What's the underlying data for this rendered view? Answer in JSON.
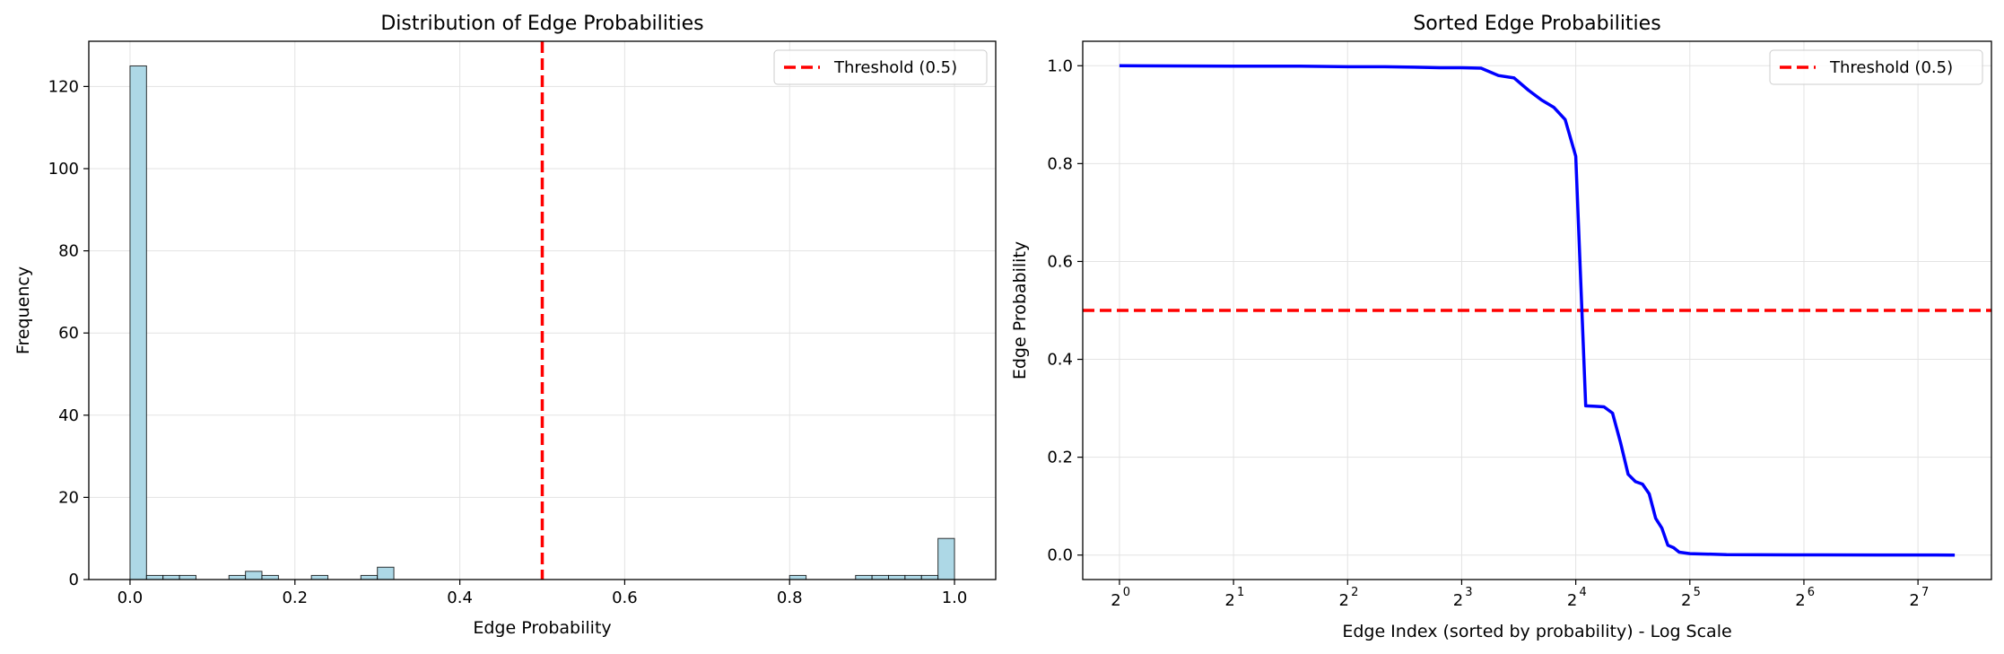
{
  "chart_data": [
    {
      "type": "bar",
      "title": "Distribution of Edge Probabilities",
      "xlabel": "Edge Probability",
      "ylabel": "Frequency",
      "xlim": [
        -0.05,
        1.05
      ],
      "ylim": [
        0,
        131
      ],
      "xticks": [
        0.0,
        0.2,
        0.4,
        0.6,
        0.8,
        1.0
      ],
      "xtick_labels": [
        "0.0",
        "0.2",
        "0.4",
        "0.6",
        "0.8",
        "1.0"
      ],
      "yticks": [
        0,
        20,
        40,
        60,
        80,
        100,
        120
      ],
      "ytick_labels": [
        "0",
        "20",
        "40",
        "60",
        "80",
        "100",
        "120"
      ],
      "bin_width": 0.02,
      "bin_starts": [
        0.0,
        0.02,
        0.04,
        0.06,
        0.12,
        0.14,
        0.16,
        0.22,
        0.28,
        0.3,
        0.8,
        0.88,
        0.9,
        0.92,
        0.94,
        0.96,
        0.98
      ],
      "values": [
        125,
        1,
        1,
        1,
        1,
        2,
        1,
        1,
        1,
        3,
        1,
        1,
        1,
        1,
        1,
        1,
        10
      ],
      "bar_color": "#add8e6",
      "bar_edge_color": "#000000",
      "grid": true,
      "threshold": {
        "x": 0.5,
        "label": "Threshold (0.5)",
        "color": "#ff0000",
        "style": "dashed"
      },
      "legend_position": "top-right"
    },
    {
      "type": "line",
      "title": "Sorted Edge Probabilities",
      "xlabel": "Edge Index (sorted by probability) - Log Scale",
      "ylabel": "Edge Probability",
      "x_scale": "log2",
      "xlim": [
        0.8,
        200
      ],
      "ylim": [
        -0.05,
        1.05
      ],
      "xticks": [
        1,
        2,
        4,
        8,
        16,
        32,
        64,
        128
      ],
      "xtick_base": "2",
      "xtick_exponents": [
        "0",
        "1",
        "2",
        "3",
        "4",
        "5",
        "6",
        "7"
      ],
      "yticks": [
        0.0,
        0.2,
        0.4,
        0.6,
        0.8,
        1.0
      ],
      "ytick_labels": [
        "0.0",
        "0.2",
        "0.4",
        "0.6",
        "0.8",
        "1.0"
      ],
      "grid": true,
      "series": [
        {
          "color": "#0000ff",
          "x": [
            1,
            2,
            3,
            4,
            5,
            6,
            7,
            8,
            9,
            10,
            11,
            12,
            13,
            14,
            15,
            16,
            17,
            18,
            19,
            20,
            21,
            22,
            23,
            24,
            25,
            26,
            27,
            28,
            29,
            30,
            32,
            40,
            60,
            100,
            160
          ],
          "values": [
            1.0,
            0.999,
            0.999,
            0.998,
            0.998,
            0.997,
            0.996,
            0.996,
            0.995,
            0.98,
            0.975,
            0.95,
            0.93,
            0.915,
            0.89,
            0.815,
            0.305,
            0.304,
            0.303,
            0.29,
            0.23,
            0.165,
            0.15,
            0.145,
            0.125,
            0.075,
            0.055,
            0.02,
            0.015,
            0.006,
            0.003,
            0.001,
            0.0005,
            0.0002,
            0.0001
          ]
        }
      ],
      "threshold": {
        "y": 0.5,
        "label": "Threshold (0.5)",
        "color": "#ff0000",
        "style": "dashed"
      },
      "legend_position": "top-right"
    }
  ]
}
